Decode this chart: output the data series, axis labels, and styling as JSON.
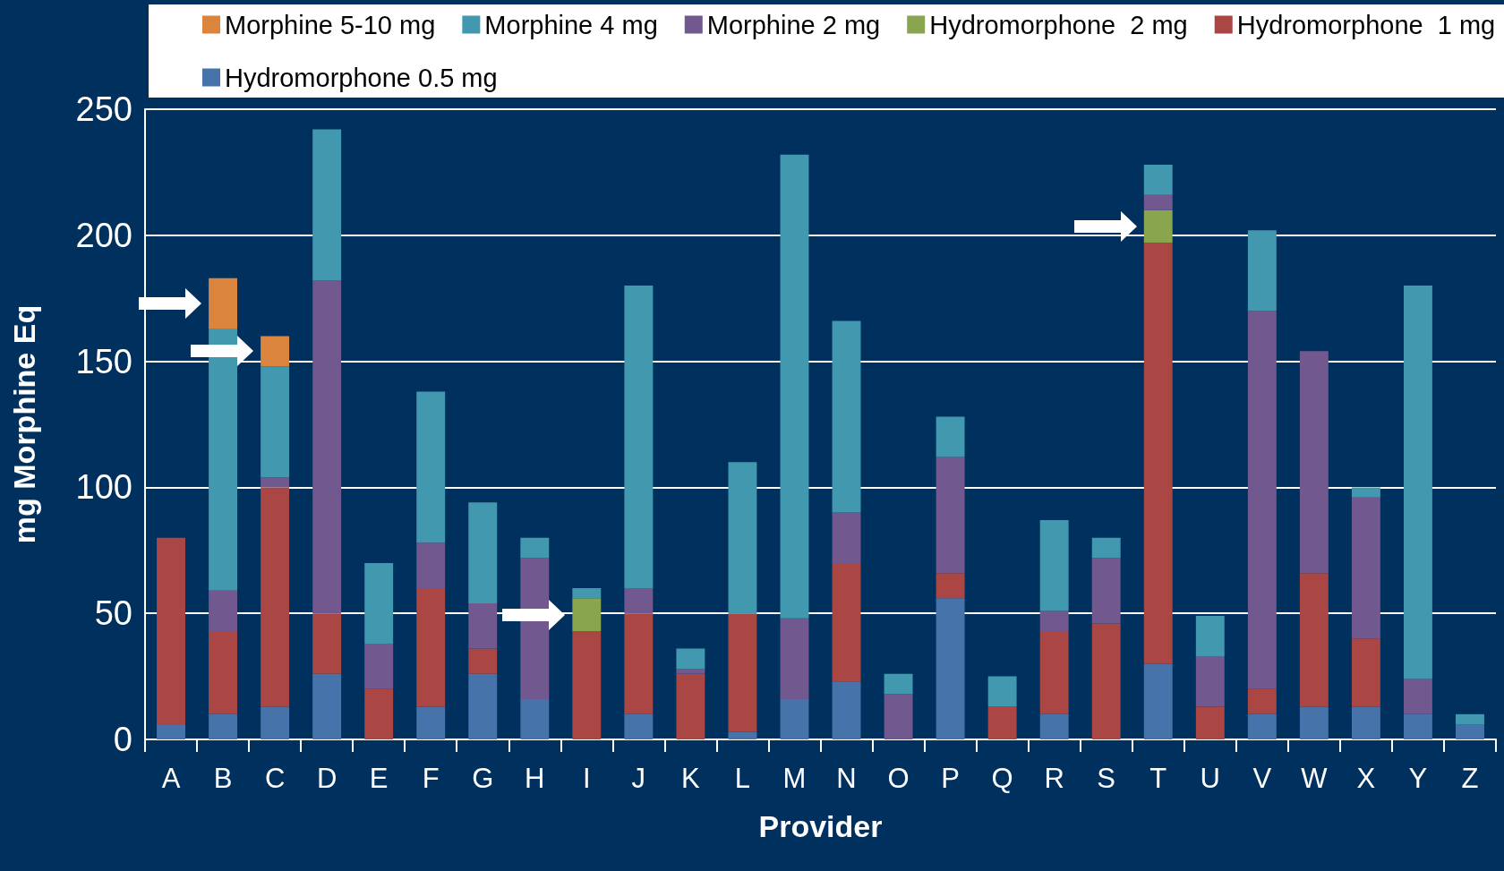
{
  "chart_data": {
    "type": "bar",
    "stacked": true,
    "xlabel": "Provider",
    "ylabel": "mg Morphine Eq",
    "categories": [
      "A",
      "B",
      "C",
      "D",
      "E",
      "F",
      "G",
      "H",
      "I",
      "J",
      "K",
      "L",
      "M",
      "N",
      "O",
      "P",
      "Q",
      "R",
      "S",
      "T",
      "U",
      "V",
      "W",
      "X",
      "Y",
      "Z"
    ],
    "series": [
      {
        "name": "Hydromorphone 0.5 mg",
        "color": "#4674aa",
        "values": [
          6,
          10,
          13,
          26,
          null,
          13,
          26,
          16,
          null,
          10,
          null,
          3,
          16,
          23,
          null,
          56,
          null,
          10,
          null,
          30,
          null,
          10,
          13,
          13,
          10,
          6
        ]
      },
      {
        "name": "Hydromorphone  1 mg",
        "color": "#aa4643",
        "values": [
          74,
          33,
          87,
          24,
          20,
          47,
          10,
          null,
          43,
          40,
          26,
          47,
          null,
          47,
          null,
          10,
          13,
          33,
          46,
          167,
          13,
          10,
          53,
          27,
          null,
          null
        ]
      },
      {
        "name": "Hydromorphone  2 mg",
        "color": "#89a54e",
        "values": [
          null,
          null,
          null,
          null,
          null,
          null,
          null,
          null,
          13,
          null,
          null,
          null,
          null,
          null,
          null,
          null,
          null,
          null,
          null,
          13,
          null,
          null,
          null,
          null,
          null,
          null
        ]
      },
      {
        "name": "Morphine 2 mg",
        "color": "#71588f",
        "values": [
          null,
          16,
          4,
          132,
          18,
          18,
          18,
          56,
          null,
          10,
          2,
          null,
          32,
          20,
          18,
          46,
          null,
          8,
          26,
          6,
          20,
          150,
          88,
          56,
          14,
          null
        ]
      },
      {
        "name": "Morphine 4 mg",
        "color": "#4198af",
        "values": [
          null,
          104,
          44,
          60,
          32,
          60,
          40,
          8,
          4,
          120,
          8,
          60,
          184,
          76,
          8,
          16,
          12,
          36,
          8,
          12,
          16,
          32,
          null,
          4,
          156,
          4
        ]
      },
      {
        "name": "Morphine 5-10 mg",
        "color": "#db843d",
        "values": [
          null,
          20,
          12,
          null,
          null,
          null,
          null,
          null,
          null,
          null,
          null,
          null,
          null,
          null,
          null,
          null,
          null,
          null,
          null,
          null,
          null,
          null,
          null,
          null,
          null,
          null
        ]
      }
    ],
    "ylim": [
      0,
      250
    ],
    "yticks": [
      0,
      50,
      100,
      150,
      200,
      250
    ],
    "grid": "y",
    "legend": "top"
  }
}
